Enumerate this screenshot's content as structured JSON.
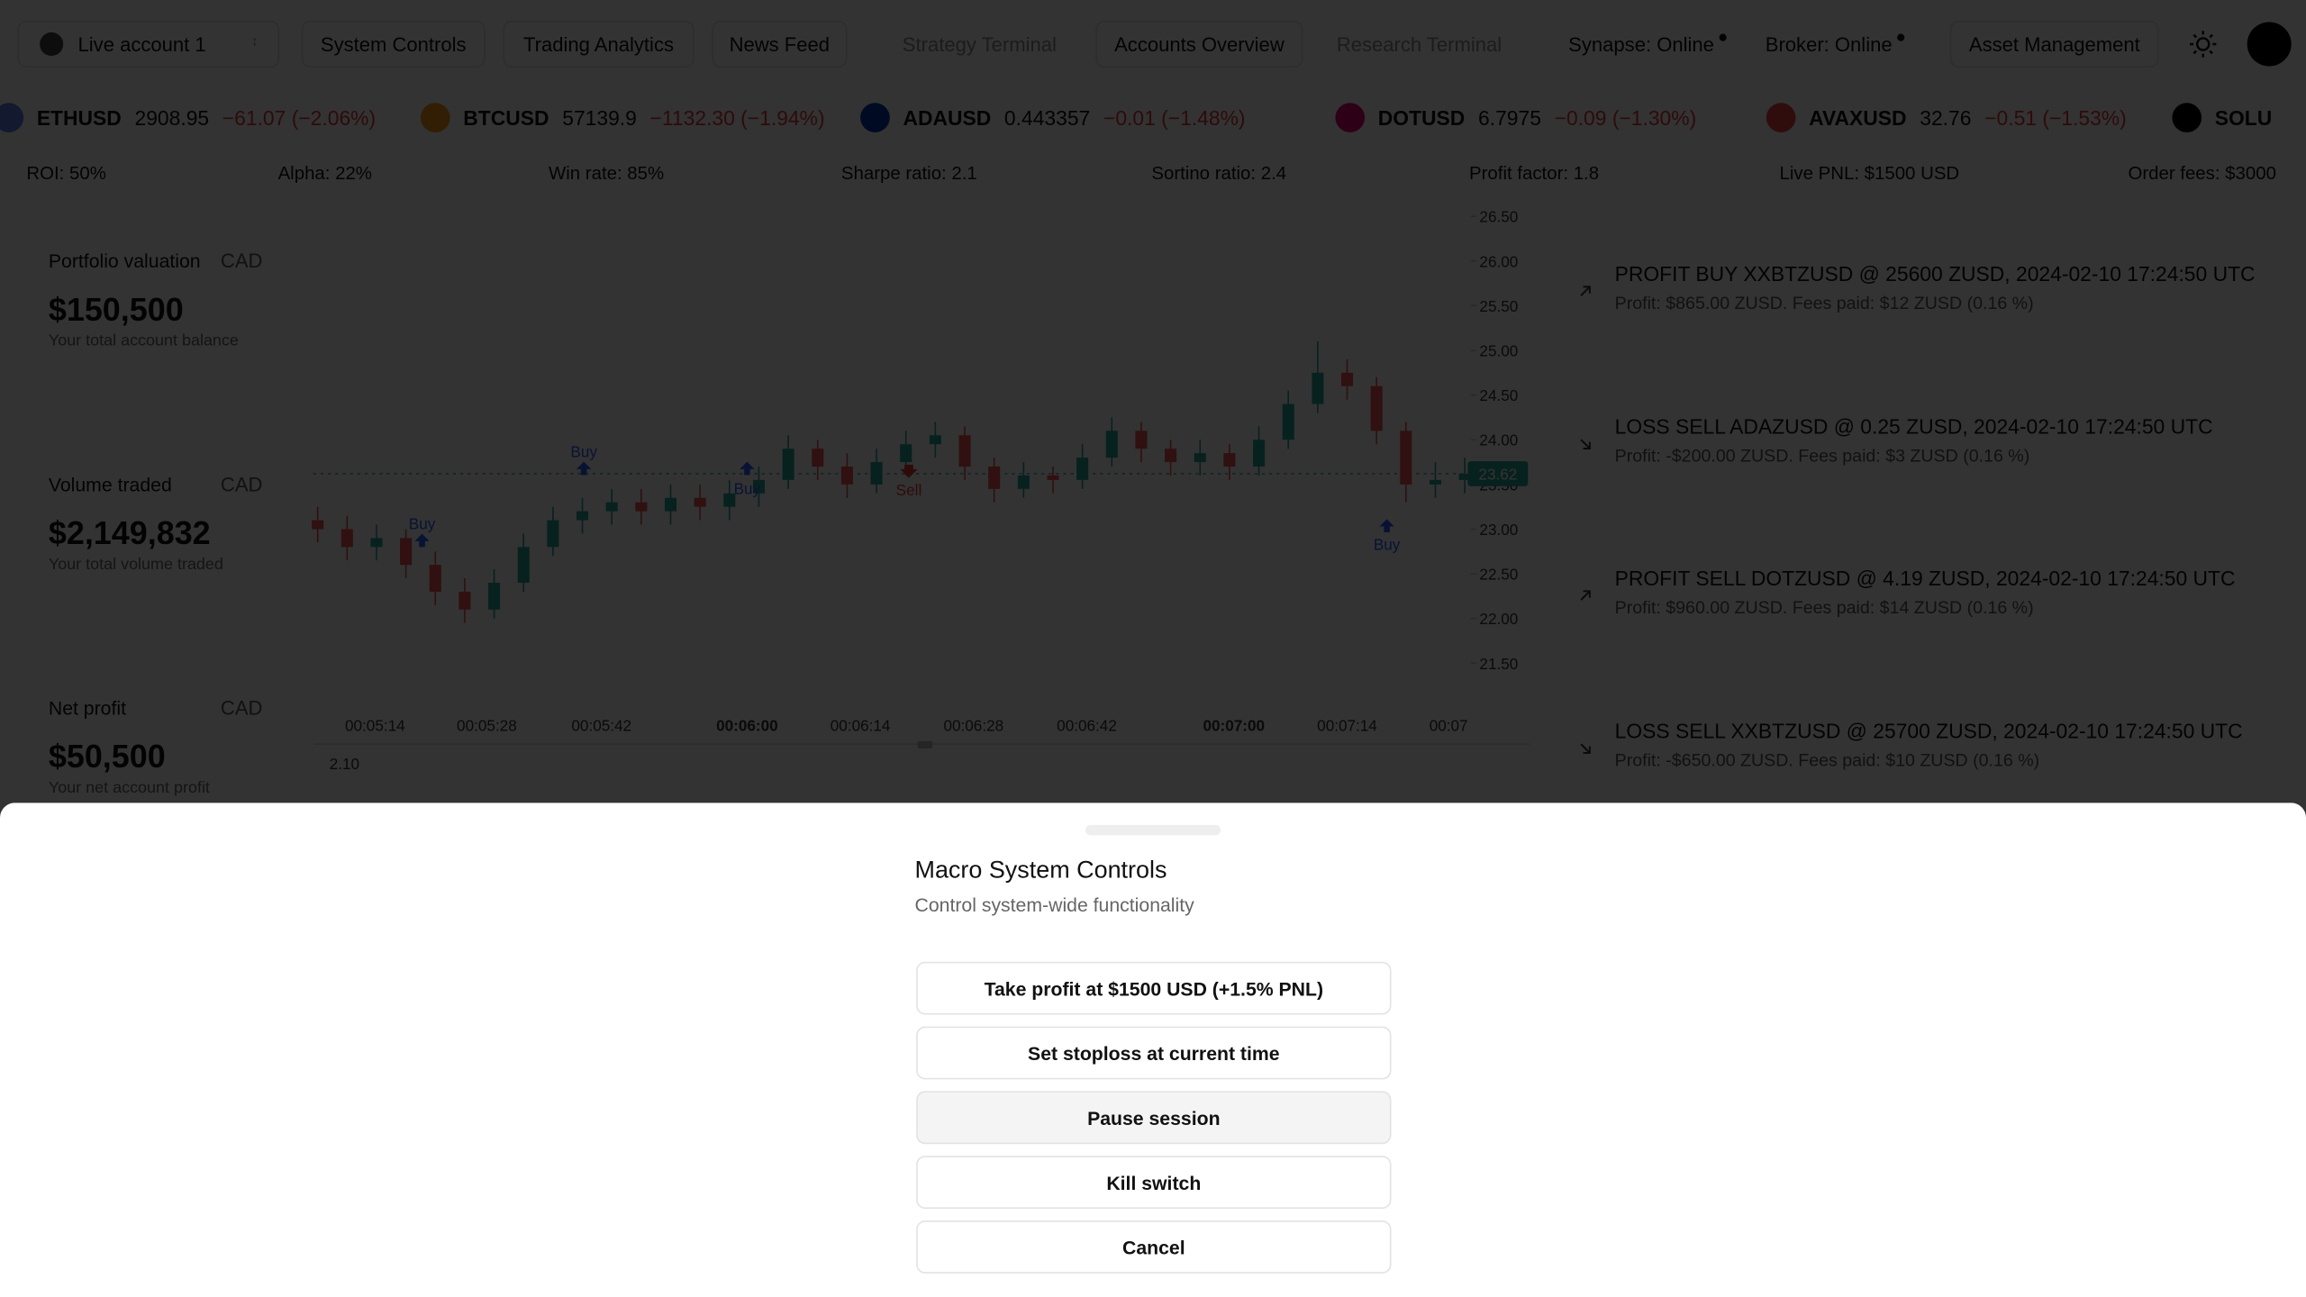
{
  "nav": {
    "account": "Live account 1",
    "tabs": [
      "System Controls",
      "Trading Analytics",
      "News Feed",
      "Strategy Terminal",
      "Accounts Overview",
      "Research Terminal"
    ],
    "status": [
      "Synapse: Online",
      "Broker: Online"
    ],
    "asset": "Asset Management"
  },
  "ticker": [
    {
      "symbol": "ETHUSD",
      "price": "2908.95",
      "change": "−61.07 (−2.06%)"
    },
    {
      "symbol": "BTCUSD",
      "price": "57139.9",
      "change": "−1132.30 (−1.94%)"
    },
    {
      "symbol": "ADAUSD",
      "price": "0.443357",
      "change": "−0.01 (−1.48%)"
    },
    {
      "symbol": "DOTUSD",
      "price": "6.7975",
      "change": "−0.09 (−1.30%)"
    },
    {
      "symbol": "AVAXUSD",
      "price": "32.76",
      "change": "−0.51 (−1.53%)"
    },
    {
      "symbol": "SOLU"
    }
  ],
  "stats": [
    "ROI: 50%",
    "Alpha: 22%",
    "Win rate: 85%",
    "Sharpe ratio: 2.1",
    "Sortino ratio: 2.4",
    "Profit factor: 1.8",
    "Live PNL: $1500 USD",
    "Order fees: $3000"
  ],
  "summary": [
    {
      "label": "Portfolio valuation",
      "unit": "CAD",
      "value": "$150,500",
      "note": "Your total account balance"
    },
    {
      "label": "Volume traded",
      "unit": "CAD",
      "value": "$2,149,832",
      "note": "Your total volume traded"
    },
    {
      "label": "Net profit",
      "unit": "CAD",
      "value": "$50,500",
      "note": "Your net account profit"
    }
  ],
  "chart": {
    "type": "candlestick",
    "ylim": [
      21.0,
      26.6
    ],
    "yticks": [
      {
        "value": 26.5,
        "label": "26.50"
      },
      {
        "value": 26,
        "label": "26.00"
      },
      {
        "value": 25.5,
        "label": "25.50"
      },
      {
        "value": 25,
        "label": "25.00"
      },
      {
        "value": 24.5,
        "label": "24.50"
      },
      {
        "value": 24,
        "label": "24.00"
      },
      {
        "value": 23.5,
        "label": "23.50"
      },
      {
        "value": 23,
        "label": "23.00"
      },
      {
        "value": 22.5,
        "label": "22.50"
      },
      {
        "value": 22,
        "label": "22.00"
      },
      {
        "value": 21.5,
        "label": "21.50"
      }
    ],
    "xticks": [
      "00:05:14",
      "00:05:28",
      "00:05:42",
      "00:06:00",
      "00:06:14",
      "00:06:28",
      "00:06:42",
      "00:07:00",
      "00:07:14",
      "00:07"
    ],
    "candles": [
      [
        23.1,
        23.25,
        22.85,
        23.0
      ],
      [
        23.0,
        23.15,
        22.65,
        22.8
      ],
      [
        22.8,
        23.05,
        22.65,
        22.9
      ],
      [
        22.9,
        23.0,
        22.45,
        22.6
      ],
      [
        22.6,
        22.75,
        22.15,
        22.3
      ],
      [
        22.3,
        22.45,
        21.95,
        22.1
      ],
      [
        22.1,
        22.55,
        22.0,
        22.4
      ],
      [
        22.4,
        22.95,
        22.3,
        22.8
      ],
      [
        22.8,
        23.25,
        22.7,
        23.1
      ],
      [
        23.1,
        23.35,
        22.95,
        23.2
      ],
      [
        23.2,
        23.45,
        23.05,
        23.3
      ],
      [
        23.3,
        23.45,
        23.05,
        23.2
      ],
      [
        23.2,
        23.5,
        23.05,
        23.35
      ],
      [
        23.35,
        23.5,
        23.1,
        23.25
      ],
      [
        23.25,
        23.55,
        23.1,
        23.4
      ],
      [
        23.4,
        23.7,
        23.25,
        23.55
      ],
      [
        23.55,
        24.05,
        23.45,
        23.9
      ],
      [
        23.9,
        24.0,
        23.55,
        23.7
      ],
      [
        23.7,
        23.85,
        23.35,
        23.5
      ],
      [
        23.5,
        23.9,
        23.4,
        23.75
      ],
      [
        23.75,
        24.1,
        23.6,
        23.95
      ],
      [
        23.95,
        24.2,
        23.8,
        24.05
      ],
      [
        24.05,
        24.15,
        23.55,
        23.7
      ],
      [
        23.7,
        23.8,
        23.3,
        23.45
      ],
      [
        23.45,
        23.75,
        23.35,
        23.6
      ],
      [
        23.6,
        23.7,
        23.4,
        23.55
      ],
      [
        23.55,
        23.95,
        23.45,
        23.8
      ],
      [
        23.8,
        24.25,
        23.7,
        24.1
      ],
      [
        24.1,
        24.2,
        23.75,
        23.9
      ],
      [
        23.9,
        24.0,
        23.6,
        23.75
      ],
      [
        23.75,
        24.0,
        23.6,
        23.85
      ],
      [
        23.85,
        23.95,
        23.55,
        23.7
      ],
      [
        23.7,
        24.15,
        23.6,
        24.0
      ],
      [
        24.0,
        24.55,
        23.9,
        24.4
      ],
      [
        24.4,
        25.1,
        24.3,
        24.75
      ],
      [
        24.75,
        24.9,
        24.45,
        24.6
      ],
      [
        24.6,
        24.7,
        23.95,
        24.1
      ],
      [
        24.1,
        24.2,
        23.3,
        23.5
      ],
      [
        23.5,
        23.75,
        23.35,
        23.55
      ],
      [
        23.55,
        23.8,
        23.4,
        23.62
      ]
    ],
    "last_price": 23.62,
    "markers": [
      "Buy",
      "Buy",
      "Buy",
      "Sell",
      "Buy"
    ],
    "indicator": {
      "value": 2.1,
      "label": "2.10"
    }
  },
  "trades": [
    {
      "title": "PROFIT BUY XXBTZUSD @ 25600 ZUSD, 2024-02-10 17:24:50 UTC",
      "detail": "Profit: $865.00 ZUSD. Fees paid: $12 ZUSD (0.16 %)"
    },
    {
      "title": "LOSS SELL ADAZUSD @ 0.25 ZUSD, 2024-02-10 17:24:50 UTC",
      "detail": "Profit: -$200.00 ZUSD. Fees paid: $3 ZUSD (0.16 %)"
    },
    {
      "title": "PROFIT SELL DOTZUSD @ 4.19 ZUSD, 2024-02-10 17:24:50 UTC",
      "detail": "Profit: $960.00 ZUSD. Fees paid: $14 ZUSD (0.16 %)"
    },
    {
      "title": "LOSS SELL XXBTZUSD @ 25700 ZUSD, 2024-02-10 17:24:50 UTC",
      "detail": "Profit: -$650.00 ZUSD. Fees paid: $10 ZUSD (0.16 %)"
    }
  ],
  "modal": {
    "title": "Macro System Controls",
    "subtitle": "Control system-wide functionality",
    "actions": [
      "Take profit at $1500 USD (+1.5% PNL)",
      "Set stoploss at current time",
      "Pause session",
      "Kill switch",
      "Cancel"
    ]
  }
}
